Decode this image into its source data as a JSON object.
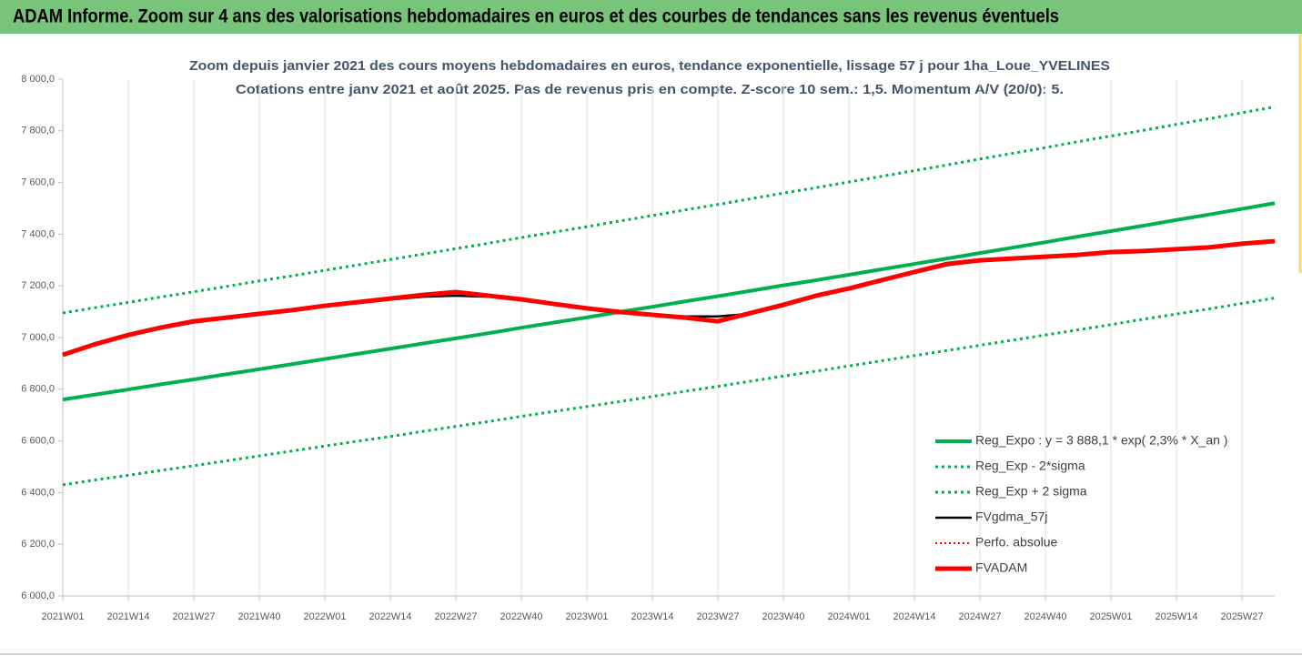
{
  "header": {
    "title": "ADAM Informe. Zoom sur 4 ans des valorisations hebdomadaires en euros et des courbes de tendances sans les revenus éventuels"
  },
  "chart_data": {
    "type": "line",
    "title": "Zoom depuis janvier 2021 des cours moyens hebdomadaires en euros, tendance exponentielle, lissage 57 j pour 1ha_Loue_YVELINES",
    "subtitle": "Cotations entre janv 2021 et août 2025.  Pas de revenus pris en compte. Z-score 10 sem.: 1,5. Momentum A/V (20/0): 5.",
    "categories": [
      "2021W01",
      null,
      "2021W14",
      null,
      "2021W27",
      null,
      "2021W40",
      null,
      "2022W01",
      null,
      "2022W14",
      null,
      "2022W27",
      null,
      "2022W40",
      null,
      "2023W01",
      null,
      "2023W14",
      null,
      "2023W27",
      null,
      "2023W40",
      null,
      "2024W01",
      null,
      "2024W14",
      null,
      "2024W27",
      null,
      "2024W40",
      null,
      "2025W01",
      null,
      "2025W14",
      null,
      "2025W27",
      null
    ],
    "ylim": [
      6000,
      8000
    ],
    "yticks": [
      {
        "value": 6000,
        "label": "6 000,0"
      },
      {
        "value": 6200,
        "label": "6 200,0"
      },
      {
        "value": 6400,
        "label": "6 400,0"
      },
      {
        "value": 6600,
        "label": "6 600,0"
      },
      {
        "value": 6800,
        "label": "6 800,0"
      },
      {
        "value": 7000,
        "label": "7 000,0"
      },
      {
        "value": 7200,
        "label": "7 200,0"
      },
      {
        "value": 7400,
        "label": "7 400,0"
      },
      {
        "value": 7600,
        "label": "7 600,0"
      },
      {
        "value": 7800,
        "label": "7 800,0"
      },
      {
        "value": 8000,
        "label": "8 000,0"
      }
    ],
    "grid": true,
    "legend": "bottom-right",
    "series": [
      {
        "name": "Reg_Expo : y = 3 888,1 * exp( 2,3% *  X_an )",
        "color": "#00b050",
        "style": "solid",
        "width": 4,
        "values": [
          6760,
          6779.5,
          6799,
          6819,
          6838,
          6858,
          6877.5,
          6897,
          6917,
          6937,
          6957,
          6977,
          6997,
          7017,
          7038,
          7058,
          7078,
          7099,
          7119,
          7140,
          7160,
          7181,
          7202,
          7222,
          7243,
          7264,
          7285,
          7306,
          7327,
          7348,
          7369,
          7391,
          7412,
          7433,
          7455,
          7476,
          7498,
          7520
        ]
      },
      {
        "name": "Reg_Exp - 2*sigma",
        "color": "#00b050",
        "style": "dotted",
        "width": 3,
        "values": [
          6430,
          6449,
          6467,
          6486,
          6504,
          6523,
          6542,
          6561,
          6580,
          6599,
          6617,
          6637,
          6656,
          6675,
          6695,
          6714,
          6733,
          6752,
          6772,
          6792,
          6811,
          6831,
          6851,
          6870,
          6890,
          6910,
          6930,
          6950,
          6970,
          6990,
          7010,
          7030,
          7050,
          7071,
          7091,
          7111,
          7132,
          7153
        ]
      },
      {
        "name": "Reg_Exp + 2 sigma",
        "color": "#00b050",
        "style": "dotted",
        "width": 3,
        "values": [
          7095,
          7116,
          7136,
          7157,
          7177,
          7198,
          7219,
          7239,
          7260,
          7281,
          7302,
          7323,
          7344,
          7365,
          7387,
          7408,
          7429,
          7451,
          7472,
          7494,
          7515,
          7537,
          7559,
          7580,
          7602,
          7624,
          7646,
          7668,
          7691,
          7713,
          7735,
          7758,
          7780,
          7802,
          7825,
          7847,
          7870,
          7893
        ]
      },
      {
        "name": "FVgdma_57j",
        "color": "#000000",
        "style": "solid",
        "width": 2.5,
        "values": [
          6933,
          6975,
          7010,
          7035,
          7058,
          7075,
          7090,
          7104,
          7120,
          7134,
          7147,
          7158,
          7162,
          7158,
          7146,
          7130,
          7113,
          7099,
          7090,
          7082,
          7082,
          7092,
          7122,
          7158,
          7188,
          7220,
          7250,
          7280,
          7296,
          7304,
          7312,
          7319,
          7330,
          7335,
          7342,
          7349,
          7363,
          7373
        ]
      },
      {
        "name": "Perfo. absolue",
        "color": "#ff0000",
        "style": "dotted",
        "width": 2,
        "values": [
          6933,
          6975,
          7010,
          7039,
          7063,
          7077,
          7092,
          7106,
          7123,
          7137,
          7151,
          7165,
          7176,
          7162,
          7148,
          7130,
          7113,
          7099,
          7088,
          7077,
          7063,
          7095,
          7127,
          7162,
          7190,
          7222,
          7254,
          7285,
          7299,
          7306,
          7313,
          7320,
          7331,
          7335,
          7342,
          7349,
          7363,
          7373
        ]
      },
      {
        "name": "FVADAM",
        "color": "#ff0000",
        "style": "solid",
        "width": 5,
        "values": [
          6933,
          6975,
          7010,
          7039,
          7063,
          7077,
          7092,
          7106,
          7123,
          7137,
          7151,
          7165,
          7176,
          7162,
          7148,
          7130,
          7113,
          7099,
          7088,
          7077,
          7063,
          7095,
          7127,
          7162,
          7190,
          7222,
          7254,
          7285,
          7299,
          7306,
          7313,
          7320,
          7331,
          7335,
          7342,
          7349,
          7363,
          7373
        ]
      }
    ]
  }
}
